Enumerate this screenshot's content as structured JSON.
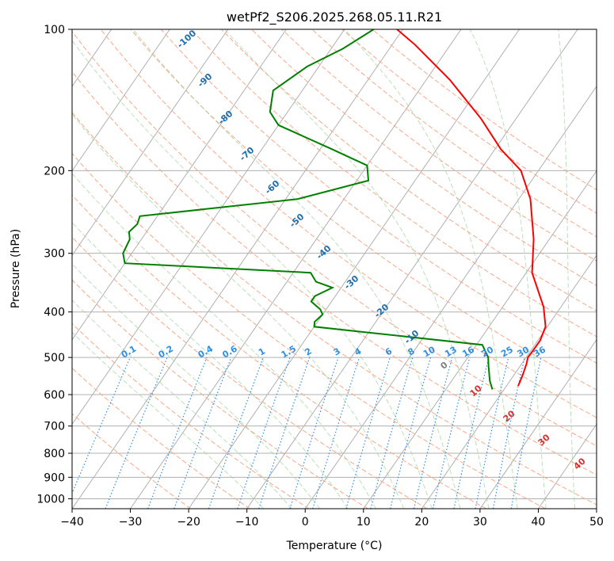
{
  "chart_data": {
    "type": "skew-t",
    "title": "wetPf2_S206.2025.268.05.11.R21",
    "xlabel": "Temperature (°C)",
    "ylabel": "Pressure (hPa)",
    "xlim": [
      -40,
      50
    ],
    "ylim_hpa": [
      1050,
      100
    ],
    "x_ticks": [
      -40,
      -30,
      -20,
      -10,
      0,
      10,
      20,
      30,
      40,
      50
    ],
    "y_ticks": [
      1000,
      900,
      800,
      700,
      600,
      500,
      400,
      300,
      200,
      100
    ],
    "temperature_profile": {
      "name": "Temperature",
      "color": "#ff0000",
      "points": [
        [
          22.0,
          575
        ],
        [
          21.5,
          545
        ],
        [
          20.8,
          515
        ],
        [
          20.3,
          500
        ],
        [
          20.4,
          480
        ],
        [
          20.4,
          460
        ],
        [
          19.7,
          430
        ],
        [
          17.0,
          390
        ],
        [
          11.0,
          330
        ],
        [
          7.3,
          280
        ],
        [
          2.0,
          230
        ],
        [
          -3.0,
          200
        ],
        [
          -9.0,
          180
        ],
        [
          -16.0,
          155
        ],
        [
          -26.0,
          128
        ],
        [
          -36.0,
          108
        ],
        [
          -41.0,
          100
        ]
      ]
    },
    "dewpoint_profile": {
      "name": "Dewpoint",
      "color": "#008000",
      "points": [
        [
          18.0,
          585
        ],
        [
          16.5,
          560
        ],
        [
          14.5,
          520
        ],
        [
          13.5,
          500
        ],
        [
          11.0,
          470
        ],
        [
          -12.0,
          440
        ],
        [
          -20.0,
          430
        ],
        [
          -20.5,
          420
        ],
        [
          -20.0,
          405
        ],
        [
          -21.0,
          395
        ],
        [
          -23.5,
          380
        ],
        [
          -23.5,
          370
        ],
        [
          -21.5,
          355
        ],
        [
          -25.0,
          345
        ],
        [
          -27.0,
          330
        ],
        [
          -60.0,
          315
        ],
        [
          -61.5,
          300
        ],
        [
          -62.0,
          280
        ],
        [
          -63.0,
          270
        ],
        [
          -62.5,
          260
        ],
        [
          -63.0,
          250
        ],
        [
          -38.0,
          230
        ],
        [
          -28.0,
          210
        ],
        [
          -30.0,
          195
        ],
        [
          -38.0,
          180
        ],
        [
          -50.0,
          160
        ],
        [
          -53.0,
          150
        ],
        [
          -55.0,
          135
        ],
        [
          -52.0,
          120
        ],
        [
          -48.0,
          110
        ],
        [
          -45.0,
          100
        ]
      ]
    },
    "isotherm_step_c": 10,
    "dry_adiabats_theta_k": [
      250,
      260,
      270,
      280,
      290,
      300,
      310,
      320,
      330,
      340,
      350,
      360,
      370,
      380,
      390,
      400,
      410,
      420,
      430,
      440
    ],
    "moist_adiabats_c": [
      -10,
      -5,
      0,
      5,
      10,
      15,
      20,
      25,
      30,
      35,
      40,
      45
    ],
    "mixing_ratios": [
      "0.1",
      "0.2",
      "0.4",
      "0.6",
      "1",
      "1.5",
      "2",
      "3",
      "4",
      "6",
      "8",
      "10",
      "13",
      "16",
      "20",
      "25",
      "30",
      "36"
    ],
    "isotherm_labels": [
      "-100",
      "-90",
      "-80",
      "-70",
      "-60",
      "-50",
      "-40",
      "-30",
      "-20",
      "-10",
      "0",
      "10",
      "20",
      "30",
      "40"
    ]
  }
}
